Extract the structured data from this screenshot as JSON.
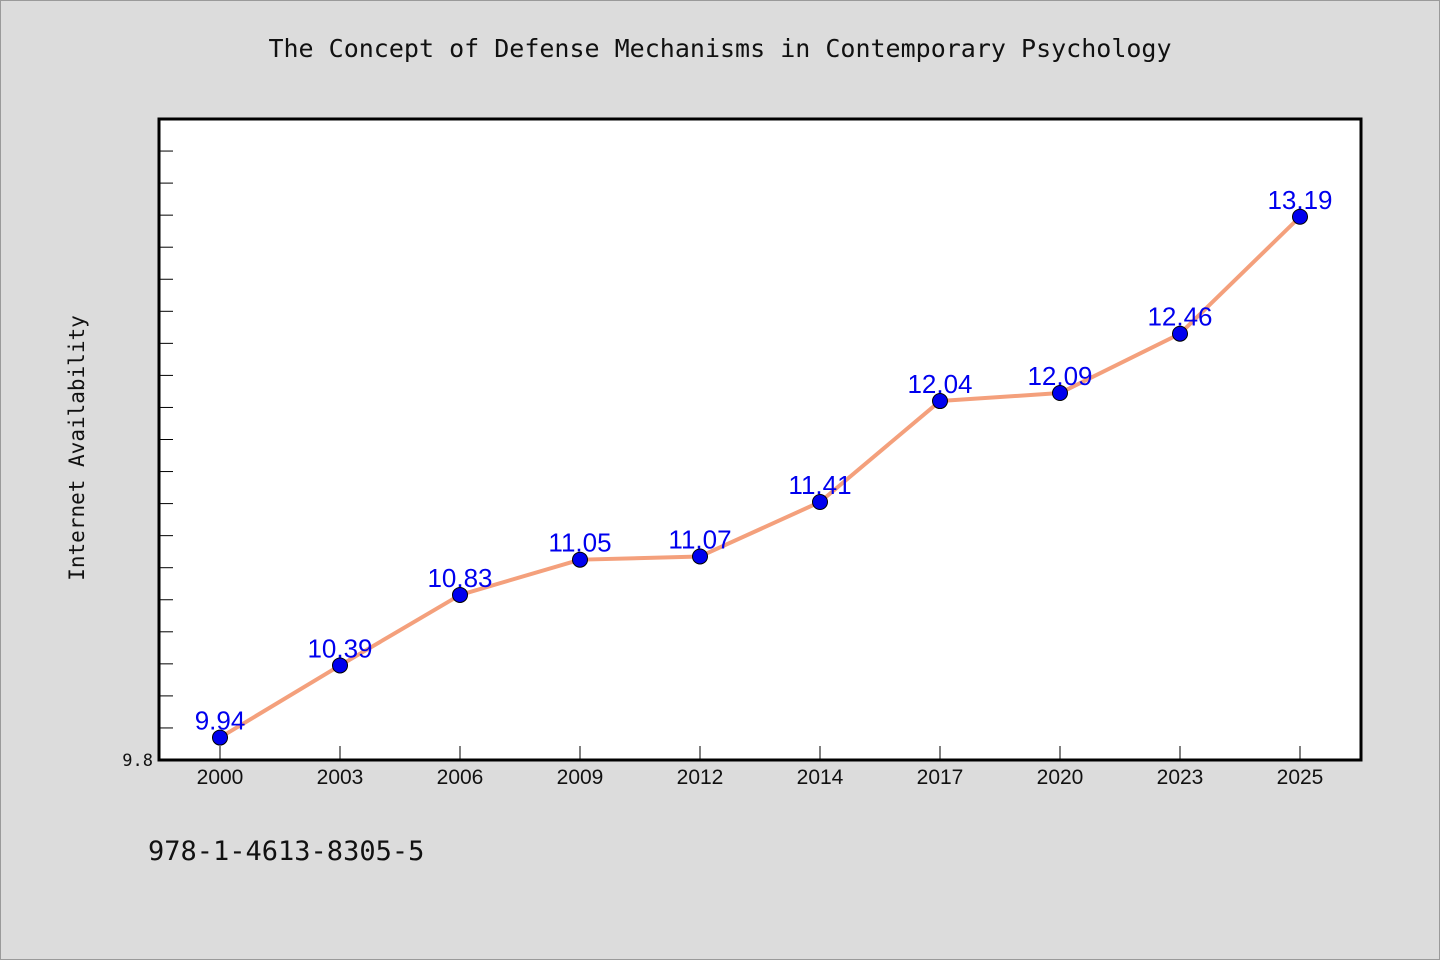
{
  "title": "The Concept of Defense Mechanisms in Contemporary Psychology",
  "isbn": "978-1-4613-8305-5",
  "colors": {
    "line": "#f4a07c",
    "marker": "#0000ee",
    "label": "#0000ee",
    "background": "#dcdcdc",
    "plot_background": "#ffffff"
  },
  "chart_data": {
    "type": "line",
    "title": "The Concept of Defense Mechanisms in Contemporary Psychology",
    "xlabel": "",
    "ylabel": "Internet Availability",
    "categories": [
      "2000",
      "2003",
      "2006",
      "2009",
      "2012",
      "2014",
      "2017",
      "2020",
      "2023",
      "2025"
    ],
    "series": [
      {
        "values": [
          9.94,
          10.39,
          10.83,
          11.05,
          11.07,
          11.41,
          12.04,
          12.09,
          12.46,
          13.19
        ],
        "labels": [
          "9.94",
          "10.39",
          "10.83",
          "11.05",
          "11.07",
          "11.41",
          "12.04",
          "12.09",
          "12.46",
          "13.19"
        ]
      }
    ],
    "ylim": [
      9.8,
      13.8
    ],
    "ytick_labels": [
      "9.8"
    ],
    "grid": false,
    "legend": "none"
  }
}
